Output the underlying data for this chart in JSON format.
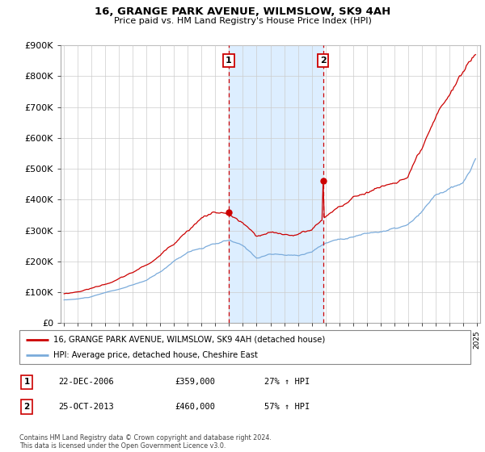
{
  "title": "16, GRANGE PARK AVENUE, WILMSLOW, SK9 4AH",
  "subtitle": "Price paid vs. HM Land Registry's House Price Index (HPI)",
  "ylim": [
    0,
    900000
  ],
  "yticks": [
    0,
    100000,
    200000,
    300000,
    400000,
    500000,
    600000,
    700000,
    800000,
    900000
  ],
  "ytick_labels": [
    "£0",
    "£100K",
    "£200K",
    "£300K",
    "£400K",
    "£500K",
    "£600K",
    "£700K",
    "£800K",
    "£900K"
  ],
  "red_line_color": "#cc0000",
  "blue_line_color": "#7aabdb",
  "vline_color": "#cc0000",
  "span_color": "#ddeeff",
  "grid_color": "#cccccc",
  "transaction1": {
    "year": 2006.97,
    "label": "1",
    "price": 359000,
    "date": "22-DEC-2006",
    "pct": "27%"
  },
  "transaction2": {
    "year": 2013.82,
    "label": "2",
    "price": 460000,
    "date": "25-OCT-2013",
    "pct": "57%"
  },
  "legend_label_red": "16, GRANGE PARK AVENUE, WILMSLOW, SK9 4AH (detached house)",
  "legend_label_blue": "HPI: Average price, detached house, Cheshire East",
  "footer": "Contains HM Land Registry data © Crown copyright and database right 2024.\nThis data is licensed under the Open Government Licence v3.0."
}
